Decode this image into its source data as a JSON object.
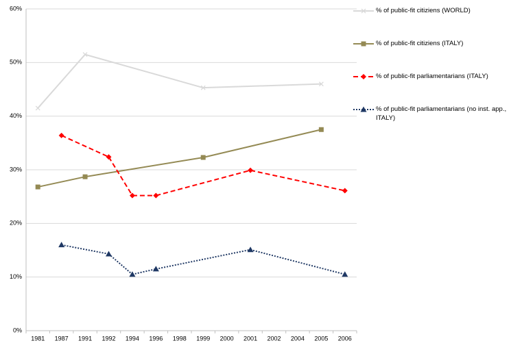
{
  "chart_data": {
    "type": "line",
    "categories": [
      "1981",
      "1987",
      "1991",
      "1992",
      "1994",
      "1996",
      "1998",
      "1999",
      "2000",
      "2001",
      "2002",
      "2004",
      "2005",
      "2006"
    ],
    "ylim": [
      0,
      60
    ],
    "yticks": [
      {
        "value": 0,
        "label": "0%"
      },
      {
        "value": 10,
        "label": "10%"
      },
      {
        "value": 20,
        "label": "20%"
      },
      {
        "value": 30,
        "label": "30%"
      },
      {
        "value": 40,
        "label": "40%"
      },
      {
        "value": 50,
        "label": "50%"
      },
      {
        "value": 60,
        "label": "60%"
      }
    ],
    "grid": true,
    "series": [
      {
        "name": "% of public-fit citiziens (WORLD)",
        "color": "#d9d9d9",
        "marker": "x",
        "dash": "solid",
        "values": [
          41.5,
          null,
          51.5,
          null,
          null,
          null,
          null,
          45.3,
          null,
          null,
          null,
          null,
          46.0,
          null
        ]
      },
      {
        "name": "% of public-fit citiziens (ITALY)",
        "color": "#948a54",
        "marker": "square",
        "dash": "solid",
        "values": [
          26.8,
          null,
          28.7,
          null,
          null,
          null,
          null,
          32.3,
          null,
          null,
          null,
          null,
          37.5,
          null
        ]
      },
      {
        "name": "% of public-fit  parliamentarians (ITALY)",
        "color": "#ff0000",
        "marker": "diamond",
        "dash": "dashed",
        "values": [
          null,
          36.4,
          null,
          32.4,
          25.2,
          25.2,
          null,
          null,
          null,
          29.9,
          null,
          null,
          null,
          26.1
        ]
      },
      {
        "name": "% of public-fit  parliamentarians (no inst. app., ITALY)",
        "color": "#1f3864",
        "marker": "triangle",
        "dash": "dotted",
        "values": [
          null,
          16.0,
          null,
          14.3,
          10.5,
          11.5,
          null,
          null,
          null,
          15.1,
          null,
          null,
          null,
          10.5
        ]
      }
    ]
  }
}
